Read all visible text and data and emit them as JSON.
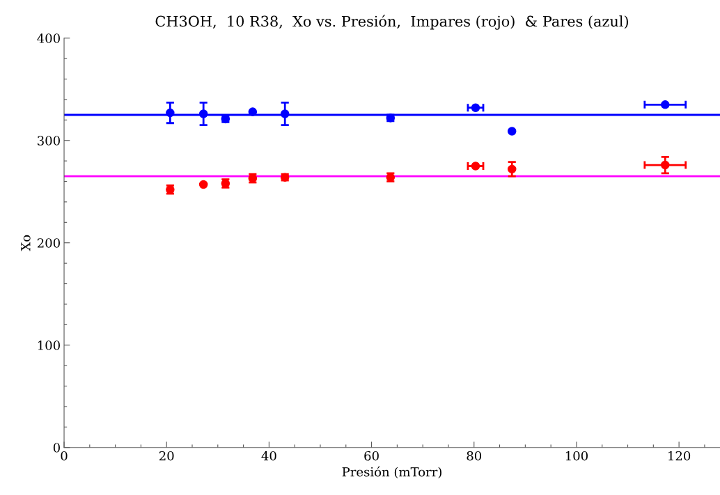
{
  "chart_data": {
    "type": "scatter",
    "title": "CH3OH,  10 R38,  Xo vs. Presión,  Impares (rojo)  & Pares (azul)",
    "xlabel": "Presión (mTorr)",
    "ylabel": "Xo",
    "xlim": [
      0,
      128
    ],
    "ylim": [
      0,
      400
    ],
    "xticks": [
      0,
      {
        "value": 5,
        "label": null
      },
      {
        "value": 10,
        "label": null
      },
      {
        "value": 15,
        "label": null
      },
      20,
      {
        "value": 25,
        "label": null
      },
      {
        "value": 30,
        "label": null
      },
      {
        "value": 35,
        "label": null
      },
      40,
      {
        "value": 45,
        "label": null
      },
      {
        "value": 50,
        "label": null
      },
      {
        "value": 55,
        "label": null
      },
      60,
      {
        "value": 65,
        "label": null
      },
      {
        "value": 70,
        "label": null
      },
      {
        "value": 75,
        "label": null
      },
      80,
      {
        "value": 85,
        "label": null
      },
      {
        "value": 90,
        "label": null
      },
      {
        "value": 95,
        "label": null
      },
      100,
      {
        "value": 105,
        "label": null
      },
      {
        "value": 110,
        "label": null
      },
      {
        "value": 115,
        "label": null
      },
      120,
      {
        "value": 125,
        "label": null
      }
    ],
    "yticks": [
      0,
      {
        "value": 20,
        "label": null
      },
      {
        "value": 40,
        "label": null
      },
      {
        "value": 60,
        "label": null
      },
      {
        "value": 80,
        "label": null
      },
      100,
      {
        "value": 120,
        "label": null
      },
      {
        "value": 140,
        "label": null
      },
      {
        "value": 160,
        "label": null
      },
      {
        "value": 180,
        "label": null
      },
      200,
      {
        "value": 220,
        "label": null
      },
      {
        "value": 240,
        "label": null
      },
      {
        "value": 260,
        "label": null
      },
      {
        "value": 280,
        "label": null
      },
      300,
      {
        "value": 320,
        "label": null
      },
      {
        "value": 340,
        "label": null
      },
      {
        "value": 360,
        "label": null
      },
      {
        "value": 380,
        "label": null
      },
      400
    ],
    "grid": false,
    "marker": "circle",
    "series": [
      {
        "color": "#0000ff",
        "x": [
          20.7,
          27.2,
          31.5,
          36.8,
          43.1,
          63.7,
          80.3,
          87.4,
          117.3
        ],
        "values": [
          327,
          326,
          321,
          328,
          326,
          322,
          332,
          309,
          335
        ],
        "errors": [
          10,
          11,
          3,
          null,
          11,
          3,
          null,
          null,
          null
        ],
        "xerrors": [
          null,
          null,
          null,
          null,
          null,
          null,
          1.5,
          null,
          4
        ]
      },
      {
        "color": "#ff0000",
        "x": [
          20.7,
          27.2,
          31.5,
          36.8,
          43.1,
          63.7,
          80.3,
          87.4,
          117.3
        ],
        "values": [
          252,
          257,
          258,
          263,
          264,
          264,
          275,
          272,
          276
        ],
        "errors": [
          4,
          null,
          4,
          4,
          3,
          4,
          null,
          [
            265,
            279
          ],
          8
        ],
        "xerrors": [
          null,
          null,
          null,
          null,
          null,
          null,
          1.5,
          null,
          4
        ]
      }
    ],
    "ref_lines": [
      {
        "axis": "y",
        "value": 325,
        "color": "#0000ff"
      },
      {
        "axis": "y",
        "value": 265,
        "color": "#ff00ff"
      }
    ]
  }
}
